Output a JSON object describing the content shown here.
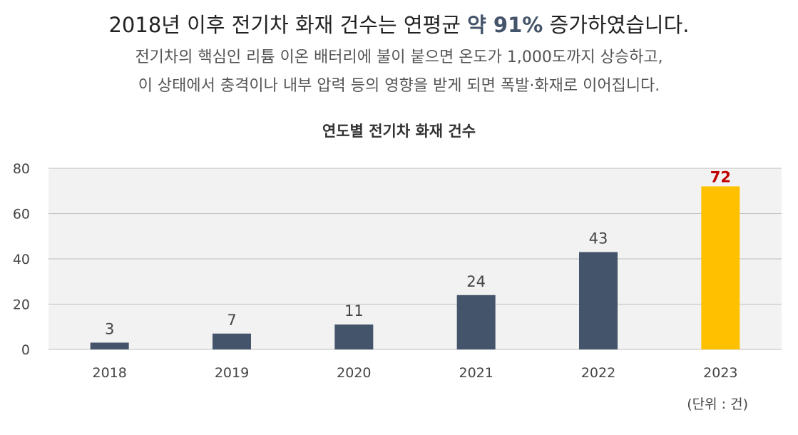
{
  "headline": {
    "prefix": "2018년 이후 전기차 화재 건수는 연평균 ",
    "highlight": "약 91%",
    "suffix": " 증가하였습니다."
  },
  "description": {
    "line1": "전기차의 핵심인 리튬 이온 배터리에 불이 붙으면 온도가 1,000도까지 상승하고,",
    "line2": "이 상태에서 충격이나 내부 압력 등의 영향을 받게 되면 폭발·화재로 이어집니다."
  },
  "unit_note": "(단위 : 건)",
  "colors": {
    "bar": "#44546a",
    "highlight_bar": "#ffc000",
    "highlight_label": "#c00000",
    "plot_background": "#f2f2f2",
    "gridline": "#bfbfbf"
  },
  "chart_data": {
    "type": "bar",
    "title": "연도별 전기차 화재 건수",
    "categories": [
      "2018",
      "2019",
      "2020",
      "2021",
      "2022",
      "2023"
    ],
    "values": [
      3,
      7,
      11,
      24,
      43,
      72
    ],
    "highlight_index": 5,
    "ylim": [
      0,
      80
    ],
    "yticks": [
      0,
      20,
      40,
      60,
      80
    ],
    "grid": true,
    "xlabel": "",
    "ylabel": ""
  }
}
